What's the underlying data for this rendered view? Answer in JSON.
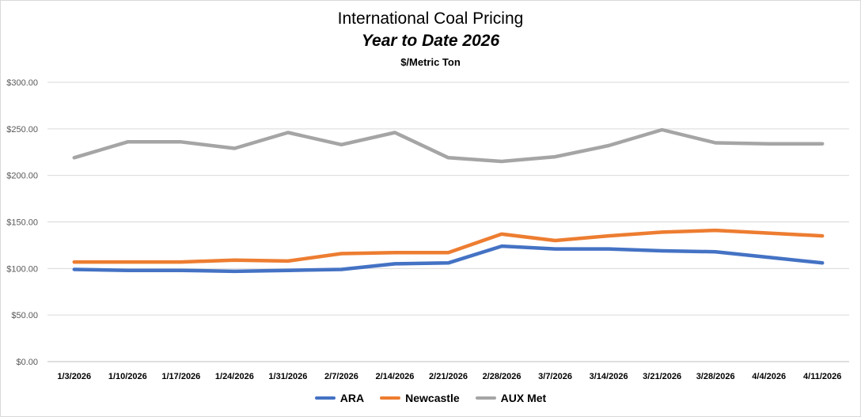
{
  "chart_data": {
    "type": "line",
    "title": "International Coal Pricing",
    "subtitle": "Year to Date 2026",
    "unit_label": "$/Metric Ton",
    "xlabel": "",
    "ylabel": "",
    "ylim": [
      0,
      300
    ],
    "yticks": [
      0,
      50,
      100,
      150,
      200,
      250,
      300
    ],
    "ytick_labels": [
      "$0.00",
      "$50.00",
      "$100.00",
      "$150.00",
      "$200.00",
      "$250.00",
      "$300.00"
    ],
    "grid": true,
    "legend_position": "bottom",
    "categories": [
      "1/3/2026",
      "1/10/2026",
      "1/17/2026",
      "1/24/2026",
      "1/31/2026",
      "2/7/2026",
      "2/14/2026",
      "2/21/2026",
      "2/28/2026",
      "3/7/2026",
      "3/14/2026",
      "3/21/2026",
      "3/28/2026",
      "4/4/2026",
      "4/11/2026"
    ],
    "series": [
      {
        "name": "ARA",
        "color": "#4472C4",
        "values": [
          99,
          98,
          98,
          97,
          98,
          99,
          105,
          106,
          124,
          121,
          121,
          119,
          118,
          112,
          106
        ]
      },
      {
        "name": "Newcastle",
        "color": "#ED7D31",
        "values": [
          107,
          107,
          107,
          109,
          108,
          116,
          117,
          117,
          137,
          130,
          135,
          139,
          141,
          138,
          135
        ]
      },
      {
        "name": "AUX Met",
        "color": "#A5A5A5",
        "values": [
          219,
          236,
          236,
          229,
          246,
          233,
          246,
          219,
          215,
          220,
          232,
          249,
          235,
          234,
          234
        ]
      }
    ]
  }
}
